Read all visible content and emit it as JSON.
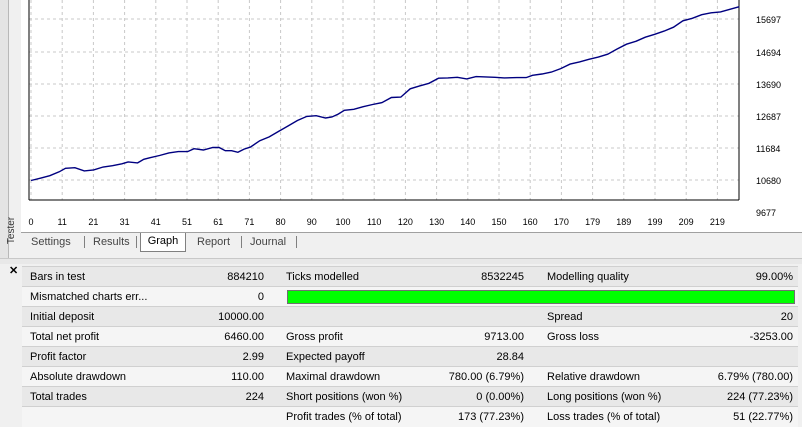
{
  "chart": {
    "y_ticks": [
      "15697",
      "14694",
      "13690",
      "12687",
      "11684",
      "10680",
      "9677"
    ],
    "x_ticks": [
      "0",
      "11",
      "21",
      "31",
      "41",
      "51",
      "61",
      "71",
      "80",
      "90",
      "100",
      "110",
      "120",
      "130",
      "140",
      "150",
      "160",
      "170",
      "179",
      "189",
      "199",
      "209",
      "219"
    ],
    "line_color": "#000080",
    "grid": true
  },
  "chart_data": {
    "type": "line",
    "ylim": [
      9677,
      16100
    ],
    "xlim": [
      0,
      227
    ],
    "x": [
      0,
      3,
      6,
      9,
      11,
      14,
      17,
      20,
      23,
      26,
      29,
      31,
      34,
      36,
      38,
      41,
      44,
      47,
      50,
      52,
      55,
      58,
      60,
      62,
      64,
      66,
      68,
      70,
      73,
      76,
      79,
      82,
      85,
      88,
      91,
      94,
      96,
      98,
      100,
      103,
      106,
      109,
      112,
      115,
      118,
      121,
      124,
      127,
      130,
      133,
      136,
      139,
      142,
      145,
      148,
      151,
      155,
      158,
      160,
      163,
      166,
      169,
      172,
      175,
      178,
      181,
      184,
      187,
      190,
      193,
      196,
      199,
      202,
      205,
      208,
      211,
      214,
      217,
      220,
      223,
      226
    ],
    "y": [
      10660,
      10730,
      10810,
      10930,
      11040,
      11060,
      10960,
      10990,
      11080,
      11120,
      11180,
      11240,
      11210,
      11320,
      11370,
      11440,
      11520,
      11560,
      11560,
      11650,
      11610,
      11690,
      11690,
      11590,
      11590,
      11540,
      11640,
      11700,
      11900,
      12020,
      12190,
      12360,
      12530,
      12660,
      12680,
      12610,
      12640,
      12730,
      12850,
      12880,
      12960,
      13030,
      13090,
      13250,
      13260,
      13520,
      13610,
      13690,
      13850,
      13860,
      13880,
      13830,
      13900,
      13890,
      13880,
      13860,
      13870,
      13870,
      13940,
      13980,
      14040,
      14150,
      14290,
      14360,
      14440,
      14510,
      14600,
      14760,
      14910,
      15000,
      15130,
      15220,
      15320,
      15440,
      15640,
      15720,
      15830,
      15890,
      15920,
      16000,
      16080
    ]
  },
  "tabs": [
    {
      "label": "Settings"
    },
    {
      "label": "Results"
    },
    {
      "label": "Graph"
    },
    {
      "label": "Report"
    },
    {
      "label": "Journal"
    }
  ],
  "tester_label": "Tester",
  "report": {
    "bars_in_test_label": "Bars in test",
    "bars_in_test": "884210",
    "ticks_modelled_label": "Ticks modelled",
    "ticks_modelled": "8532245",
    "modelling_quality_label": "Modelling quality",
    "modelling_quality": "99.00%",
    "modelling_quality_fraction": 0.99,
    "mismatched_label": "Mismatched charts err...",
    "mismatched": "0",
    "initial_deposit_label": "Initial deposit",
    "initial_deposit": "10000.00",
    "spread_label": "Spread",
    "spread": "20",
    "total_net_profit_label": "Total net profit",
    "total_net_profit": "6460.00",
    "gross_profit_label": "Gross profit",
    "gross_profit": "9713.00",
    "gross_loss_label": "Gross loss",
    "gross_loss": "-3253.00",
    "profit_factor_label": "Profit factor",
    "profit_factor": "2.99",
    "expected_payoff_label": "Expected payoff",
    "expected_payoff": "28.84",
    "absolute_drawdown_label": "Absolute drawdown",
    "absolute_drawdown": "110.00",
    "maximal_drawdown_label": "Maximal drawdown",
    "maximal_drawdown": "780.00 (6.79%)",
    "relative_drawdown_label": "Relative drawdown",
    "relative_drawdown": "6.79% (780.00)",
    "total_trades_label": "Total trades",
    "total_trades": "224",
    "short_positions_label": "Short positions (won %)",
    "short_positions": "0 (0.00%)",
    "long_positions_label": "Long positions (won %)",
    "long_positions": "224 (77.23%)",
    "profit_trades_label": "Profit trades (% of total)",
    "profit_trades": "173 (77.23%)",
    "loss_trades_label": "Loss trades (% of total)",
    "loss_trades": "51 (22.77%)"
  }
}
